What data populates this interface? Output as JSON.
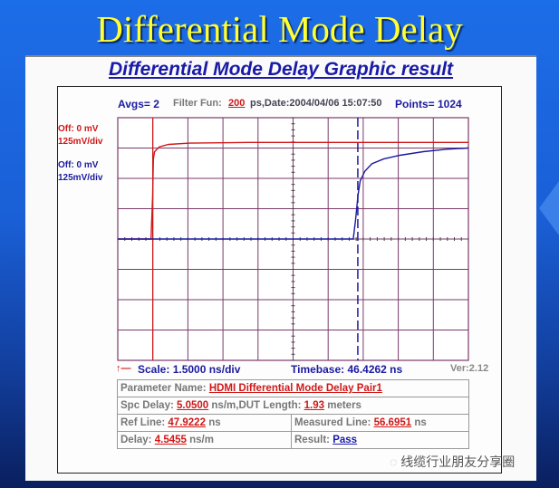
{
  "slide": {
    "title": "Differential Mode Delay",
    "watermark": "线缆行业朋友分享圈",
    "watermark_icon": "wechat-icon"
  },
  "panel": {
    "subtitle": "Differential Mode Delay Graphic result"
  },
  "header": {
    "avgs": "Avgs= 2",
    "filter_label": "Filter Fun:",
    "filter_value": "200",
    "date": "ps,Date:2004/04/06 15:07:50",
    "points": "Points= 1024"
  },
  "channels": [
    {
      "offset": "Off: 0 mV",
      "scale": "125mV/div",
      "color": "#d01818"
    },
    {
      "offset": "Off: 0 mV",
      "scale": "125mV/div",
      "color": "#1a1aa0"
    }
  ],
  "footer": {
    "scale": "Scale: 1.5000 ns/div",
    "timebase": "Timebase: 46.4262 ns",
    "version": "Ver:2.12"
  },
  "params": {
    "name_label": "Parameter Name:",
    "name_value": "HDMI Differential Mode Delay Pair1",
    "spc_label": "Spc Delay:",
    "spc_value": "5.0500",
    "spc_unit": "ns/m,DUT Length:",
    "length_value": "1.93",
    "length_unit": "meters",
    "ref_label": "Ref Line:",
    "ref_value": "47.9222",
    "ref_unit": "ns",
    "meas_label": "Measured Line:",
    "meas_value": "56.6951",
    "meas_unit": "ns",
    "delay_label": "Delay:",
    "delay_value": "4.5455",
    "delay_unit": "ns/m",
    "result_label": "Result:",
    "result_value": "Pass"
  },
  "chart_data": {
    "type": "line",
    "xlabel": "",
    "ylabel": "",
    "xlim": [
      46.4262,
      61.4262
    ],
    "ylim": [
      -500,
      500
    ],
    "x_div": 1.5,
    "y_div": 125,
    "grid": true,
    "markers": {
      "ref_line_ns": 47.9222,
      "measured_line_ns": 56.6951
    },
    "series": [
      {
        "color": "#d01818",
        "x": [
          46.43,
          47.85,
          47.92,
          47.95,
          48.0,
          48.2,
          48.6,
          49.5,
          52,
          55,
          58,
          61.43
        ],
        "y": [
          0,
          0,
          180,
          330,
          360,
          380,
          390,
          395,
          398,
          398,
          398,
          398
        ]
      },
      {
        "color": "#1a1aa0",
        "x": [
          46.43,
          56.5,
          56.6,
          56.7,
          56.8,
          57.0,
          57.3,
          57.8,
          58.5,
          59.5,
          60.5,
          61.43
        ],
        "y": [
          0,
          0,
          80,
          180,
          240,
          280,
          310,
          330,
          345,
          360,
          370,
          375
        ]
      }
    ]
  }
}
